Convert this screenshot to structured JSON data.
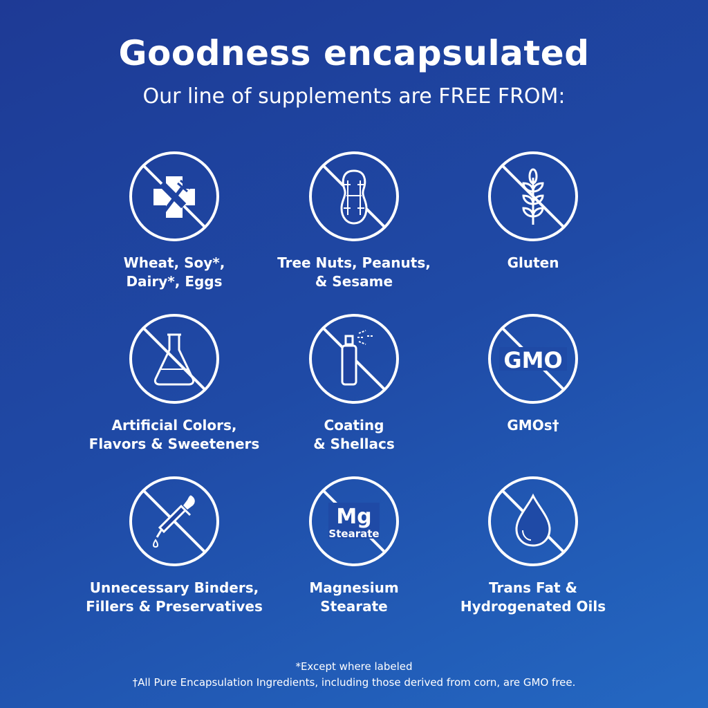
{
  "header": {
    "title": "Goodness encapsulated",
    "subtitle": "Our line of supplements are FREE FROM:"
  },
  "items": [
    {
      "icon": "allergen-cross-fork-icon",
      "label1": "Wheat, Soy*,",
      "label2": "Dairy*, Eggs"
    },
    {
      "icon": "peanut-icon",
      "label1": "Tree Nuts, Peanuts,",
      "label2": "& Sesame"
    },
    {
      "icon": "wheat-icon",
      "label1": "Gluten",
      "label2": ""
    },
    {
      "icon": "flask-icon",
      "label1": "Artificial Colors,",
      "label2": "Flavors & Sweeteners"
    },
    {
      "icon": "spray-can-icon",
      "label1": "Coating",
      "label2": "& Shellacs"
    },
    {
      "icon": "gmo-icon",
      "icon_text": "GMO",
      "label1": "GMOs†",
      "label2": ""
    },
    {
      "icon": "dropper-icon",
      "label1": "Unnecessary Binders,",
      "label2": "Fillers & Preservatives"
    },
    {
      "icon": "mg-stearate-icon",
      "icon_text": "Mg",
      "icon_text2": "Stearate",
      "label1": "Magnesium",
      "label2": "Stearate"
    },
    {
      "icon": "oil-drop-icon",
      "label1": "Trans Fat &",
      "label2": "Hydrogenated Oils"
    }
  ],
  "footnotes": [
    "*Except where labeled",
    "†All Pure Encapsulation Ingredients, including those derived from corn, are GMO free."
  ],
  "colors": {
    "background_top": "#1e3a95",
    "background_bottom": "#2468c2",
    "foreground": "#ffffff"
  }
}
